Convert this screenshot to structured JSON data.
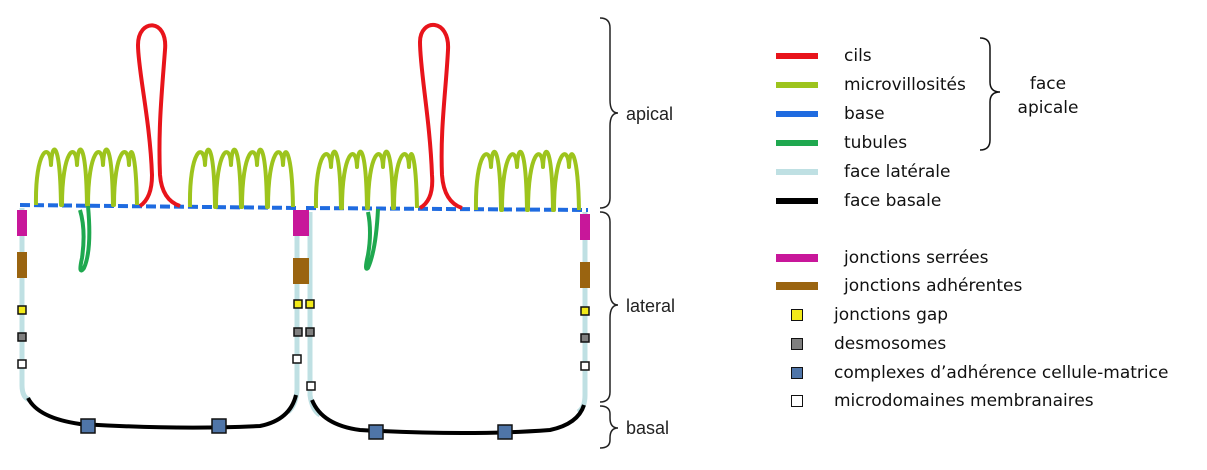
{
  "regions": {
    "apical": "apical",
    "lateral": "lateral",
    "basal": "basal"
  },
  "legend": {
    "lines": [
      {
        "label": "cils",
        "color": "#e8141b"
      },
      {
        "label": "microvillosités",
        "color": "#9dc41d"
      },
      {
        "label": "base",
        "color": "#1f6be0"
      },
      {
        "label": "tubules",
        "color": "#1fa84f"
      },
      {
        "label": "face latérale",
        "color": "#bfe0e3"
      },
      {
        "label": "face basale",
        "color": "#000000"
      }
    ],
    "brace_label_line1": "face",
    "brace_label_line2": "apicale",
    "bars": [
      {
        "label": "jonctions serrées",
        "color": "#c8179a"
      },
      {
        "label": "jonctions adhérentes",
        "color": "#9a6410"
      }
    ],
    "squares": [
      {
        "label": "jonctions gap",
        "color": "#f2ea1a"
      },
      {
        "label": "desmosomes",
        "color": "#7f7f7f"
      },
      {
        "label": "complexes d’adhérence cellule-matrice",
        "color": "#4f75a8"
      },
      {
        "label": "microdomaines membranaires",
        "color": "#ffffff"
      }
    ]
  }
}
